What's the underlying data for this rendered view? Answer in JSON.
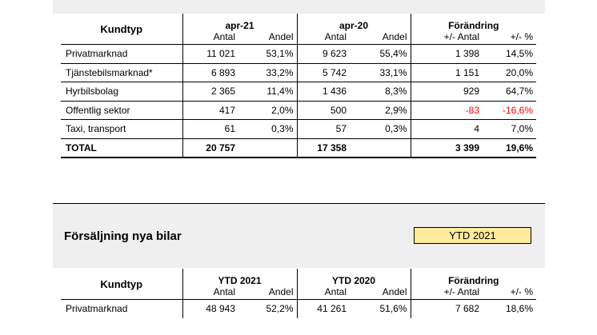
{
  "table1": {
    "header": {
      "kundtyp": "Kundtyp",
      "groups": [
        "apr-21",
        "apr-20",
        "Förändring"
      ],
      "sub": [
        "Antal",
        "Andel",
        "Antal",
        "Andel",
        "+/- Antal",
        "+/- %"
      ]
    },
    "rows": [
      {
        "label": "Privatmarknad",
        "v": [
          "11 021",
          "53,1%",
          "9 623",
          "55,4%",
          "1 398",
          "14,5%"
        ]
      },
      {
        "label": "Tjänstebilsmarknad*",
        "v": [
          "6 893",
          "33,2%",
          "5 742",
          "33,1%",
          "1 151",
          "20,0%"
        ]
      },
      {
        "label": "Hyrbilsbolag",
        "v": [
          "2 365",
          "11,4%",
          "1 436",
          "8,3%",
          "929",
          "64,7%"
        ]
      },
      {
        "label": "Offentlig sektor",
        "v": [
          "417",
          "2,0%",
          "500",
          "2,9%",
          "-83",
          "-16,6%"
        ]
      },
      {
        "label": "Taxi, transport",
        "v": [
          "61",
          "0,3%",
          "57",
          "0,3%",
          "4",
          "7,0%"
        ]
      },
      {
        "label": "TOTAL",
        "v": [
          "20 757",
          "",
          "17 358",
          "",
          "3 399",
          "19,6%"
        ]
      }
    ]
  },
  "section2": {
    "title": "Försäljning nya bilar",
    "ytd_label": "YTD 2021"
  },
  "table2": {
    "header": {
      "kundtyp": "Kundtyp",
      "groups": [
        "YTD 2021",
        "YTD 2020",
        "Förändring"
      ],
      "sub": [
        "Antal",
        "Andel",
        "Antal",
        "Andel",
        "+/- Antal",
        "+/- %"
      ]
    },
    "rows": [
      {
        "label": "Privatmarknad",
        "v": [
          "48 943",
          "52,2%",
          "41 261",
          "51,6%",
          "7 682",
          "18,6%"
        ]
      }
    ]
  },
  "colors": {
    "negative": "#ff0000",
    "highlight": "#ffeb9c",
    "band": "#efefef"
  }
}
